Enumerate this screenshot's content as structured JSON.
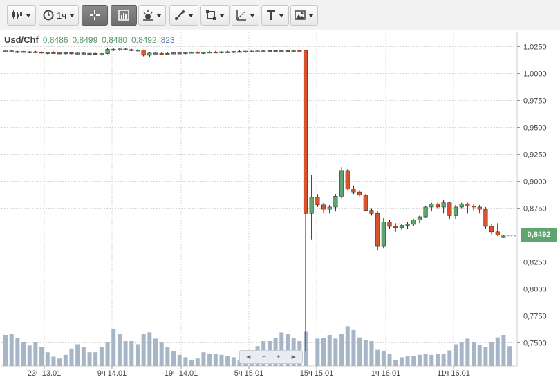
{
  "toolbar": {
    "interval_label": "1ч",
    "icons": [
      "candlestick-icon",
      "clock-icon",
      "crosshair-icon",
      "bar-chart-icon",
      "indicators-icon",
      "line-tool-icon",
      "shape-tool-icon",
      "fib-tool-icon",
      "text-tool-icon",
      "image-icon"
    ]
  },
  "legend": {
    "symbol": "Usd/Chf",
    "open": "0,8486",
    "high": "0,8499",
    "low": "0,8480",
    "close": "0,8492",
    "volume": "823"
  },
  "last_price": "0,8492",
  "navigator": {
    "left": "◄",
    "minus": "−",
    "plus": "+",
    "right": "►"
  },
  "colors": {
    "up": "#5fa56f",
    "down": "#d9532f",
    "volume": "#a6b6c6",
    "grid": "#d7d7d7"
  },
  "chart_data": {
    "type": "candlestick",
    "y_ticks": [
      "1,0250",
      "1,0000",
      "0,9750",
      "0,9500",
      "0,9250",
      "0,9000",
      "0,8750",
      "0,8500",
      "0,8250",
      "0,8000",
      "0,7750",
      "0,7500"
    ],
    "ylim": [
      0.74,
      1.029
    ],
    "x_ticks": [
      "23ч 13.01",
      "9ч 14.01",
      "19ч 14.01",
      "5ч 15.01",
      "15ч 15.01",
      "1ч 16.01",
      "11ч 16.01"
    ],
    "candles": [
      [
        1.0205,
        1.0215,
        1.0195,
        1.021
      ],
      [
        1.021,
        1.0215,
        1.0195,
        1.02
      ],
      [
        1.02,
        1.021,
        1.019,
        1.0205
      ],
      [
        1.0205,
        1.021,
        1.0195,
        1.0198
      ],
      [
        1.0198,
        1.0208,
        1.019,
        1.0202
      ],
      [
        1.0202,
        1.021,
        1.0195,
        1.02
      ],
      [
        1.02,
        1.0205,
        1.0185,
        1.019
      ],
      [
        1.019,
        1.02,
        1.018,
        1.0195
      ],
      [
        1.0195,
        1.0205,
        1.0188,
        1.0192
      ],
      [
        1.0192,
        1.02,
        1.0182,
        1.0188
      ],
      [
        1.0188,
        1.0198,
        1.0178,
        1.0193
      ],
      [
        1.0193,
        1.02,
        1.018,
        1.0185
      ],
      [
        1.0185,
        1.0195,
        1.0175,
        1.019
      ],
      [
        1.019,
        1.0198,
        1.0178,
        1.0182
      ],
      [
        1.0182,
        1.019,
        1.017,
        1.0188
      ],
      [
        1.0188,
        1.0192,
        1.017,
        1.0178
      ],
      [
        1.0178,
        1.019,
        1.0168,
        1.0185
      ],
      [
        1.0185,
        1.0235,
        1.018,
        1.0225
      ],
      [
        1.0225,
        1.024,
        1.021,
        1.022
      ],
      [
        1.022,
        1.0235,
        1.021,
        1.0228
      ],
      [
        1.0228,
        1.0235,
        1.0215,
        1.0222
      ],
      [
        1.0222,
        1.023,
        1.021,
        1.0215
      ],
      [
        1.0215,
        1.0225,
        1.0205,
        1.0218
      ],
      [
        1.0218,
        1.0222,
        1.016,
        1.017
      ],
      [
        1.017,
        1.02,
        1.015,
        1.019
      ],
      [
        1.019,
        1.02,
        1.018,
        1.0186
      ],
      [
        1.0186,
        1.0195,
        1.0175,
        1.0182
      ],
      [
        1.0182,
        1.0195,
        1.0172,
        1.0188
      ],
      [
        1.0188,
        1.02,
        1.0178,
        1.0192
      ],
      [
        1.0192,
        1.02,
        1.0182,
        1.0186
      ],
      [
        1.0186,
        1.0198,
        1.018,
        1.0195
      ],
      [
        1.0195,
        1.0205,
        1.0185,
        1.0198
      ],
      [
        1.0198,
        1.0205,
        1.0188,
        1.0192
      ],
      [
        1.0192,
        1.02,
        1.0182,
        1.0196
      ],
      [
        1.0196,
        1.021,
        1.0188,
        1.02
      ],
      [
        1.02,
        1.021,
        1.019,
        1.0196
      ],
      [
        1.0196,
        1.0205,
        1.0188,
        1.0202
      ],
      [
        1.0202,
        1.0212,
        1.0192,
        1.0198
      ],
      [
        1.0198,
        1.0208,
        1.019,
        1.0205
      ],
      [
        1.0205,
        1.0215,
        1.0195,
        1.02
      ],
      [
        1.02,
        1.021,
        1.0192,
        1.0208
      ],
      [
        1.0208,
        1.0215,
        1.0198,
        1.0203
      ],
      [
        1.0203,
        1.0212,
        1.0195,
        1.021
      ],
      [
        1.021,
        1.0215,
        1.02,
        1.0205
      ],
      [
        1.0205,
        1.0215,
        1.0198,
        1.0212
      ],
      [
        1.0212,
        1.022,
        1.0205,
        1.0208
      ],
      [
        1.0208,
        1.0215,
        1.02,
        1.0212
      ],
      [
        1.0212,
        1.022,
        1.0205,
        1.021
      ],
      [
        1.021,
        1.0218,
        1.0202,
        1.0215
      ],
      [
        1.0215,
        1.0222,
        1.0205,
        1.021
      ],
      [
        1.0215,
        1.022,
        0.742,
        0.87
      ],
      [
        0.87,
        0.906,
        0.846,
        0.885
      ],
      [
        0.885,
        0.888,
        0.876,
        0.878
      ],
      [
        0.878,
        0.88,
        0.87,
        0.874
      ],
      [
        0.874,
        0.878,
        0.87,
        0.876
      ],
      [
        0.876,
        0.888,
        0.872,
        0.886
      ],
      [
        0.886,
        0.913,
        0.884,
        0.91
      ],
      [
        0.91,
        0.911,
        0.892,
        0.893
      ],
      [
        0.893,
        0.896,
        0.888,
        0.89
      ],
      [
        0.89,
        0.892,
        0.886,
        0.887
      ],
      [
        0.887,
        0.888,
        0.872,
        0.873
      ],
      [
        0.873,
        0.875,
        0.868,
        0.87
      ],
      [
        0.87,
        0.872,
        0.836,
        0.84
      ],
      [
        0.84,
        0.866,
        0.838,
        0.862
      ],
      [
        0.862,
        0.864,
        0.856,
        0.858
      ],
      [
        0.858,
        0.861,
        0.853,
        0.857
      ],
      [
        0.857,
        0.86,
        0.855,
        0.859
      ],
      [
        0.859,
        0.862,
        0.856,
        0.86
      ],
      [
        0.86,
        0.865,
        0.858,
        0.864
      ],
      [
        0.864,
        0.868,
        0.861,
        0.867
      ],
      [
        0.867,
        0.877,
        0.866,
        0.876
      ],
      [
        0.876,
        0.88,
        0.872,
        0.879
      ],
      [
        0.879,
        0.88,
        0.875,
        0.876
      ],
      [
        0.876,
        0.883,
        0.87,
        0.88
      ],
      [
        0.88,
        0.881,
        0.865,
        0.868
      ],
      [
        0.868,
        0.878,
        0.865,
        0.876
      ],
      [
        0.876,
        0.88,
        0.875,
        0.879
      ],
      [
        0.879,
        0.88,
        0.87,
        0.877
      ],
      [
        0.877,
        0.879,
        0.873,
        0.876
      ],
      [
        0.876,
        0.878,
        0.87,
        0.874
      ],
      [
        0.874,
        0.876,
        0.856,
        0.858
      ],
      [
        0.858,
        0.86,
        0.85,
        0.853
      ],
      [
        0.853,
        0.861,
        0.849,
        0.85
      ],
      [
        0.8486,
        0.8499,
        0.848,
        0.8492
      ]
    ],
    "volume_scale_max": 100,
    "volumes": [
      50,
      52,
      45,
      38,
      33,
      38,
      30,
      22,
      15,
      12,
      18,
      28,
      35,
      30,
      22,
      22,
      30,
      38,
      60,
      52,
      40,
      40,
      35,
      52,
      54,
      44,
      38,
      30,
      24,
      18,
      14,
      10,
      12,
      22,
      20,
      20,
      18,
      16,
      14,
      10,
      12,
      20,
      32,
      40,
      40,
      45,
      54,
      52,
      45,
      40,
      55,
      0,
      44,
      45,
      50,
      44,
      52,
      64,
      58,
      46,
      42,
      40,
      26,
      24,
      20,
      10,
      14,
      16,
      16,
      18,
      20,
      18,
      20,
      20,
      25,
      35,
      38,
      44,
      38,
      34,
      30,
      38,
      46,
      50,
      32
    ]
  }
}
